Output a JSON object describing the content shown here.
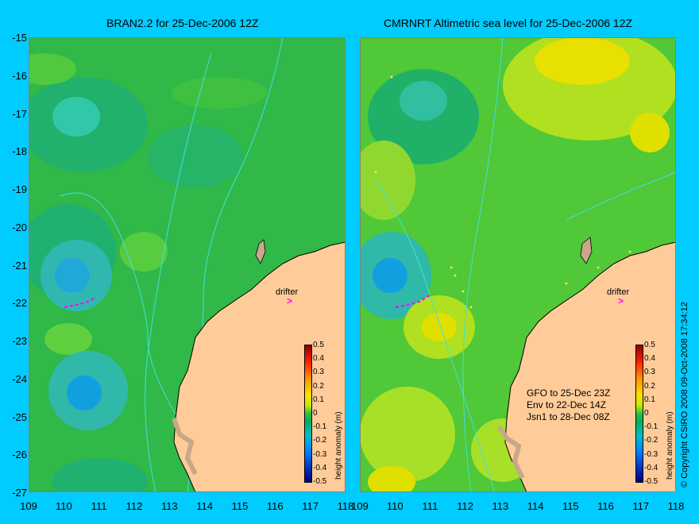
{
  "left_panel": {
    "title": "BRAN2.2 for 25-Dec-2006 12Z"
  },
  "right_panel": {
    "title": "CMRNRT Altimetric sea level  for 25-Dec-2006 12Z"
  },
  "y_axis_labels": [
    "-15",
    "-16",
    "-17",
    "-18",
    "-19",
    "-20",
    "-21",
    "-22",
    "-23",
    "-24",
    "-25",
    "-26",
    "-27"
  ],
  "x_axis_labels": [
    "109",
    "110",
    "111",
    "112",
    "113",
    "114",
    "115",
    "116",
    "117",
    "118"
  ],
  "drifter_label": "drifter",
  "colorbar": {
    "ticks": [
      "0.5",
      "0.4",
      "0.3",
      "0.2",
      "0.1",
      "0",
      "-0.1",
      "-0.2",
      "-0.3",
      "-0.4",
      "-0.5"
    ],
    "title": "height anomaly (m)"
  },
  "satellite_legend": [
    "GFO to 25-Dec 23Z",
    "Env to 22-Dec 14Z",
    "Jsn1 to 28-Dec 08Z"
  ],
  "copyright": "© Copyright CSIRO 2008   09-Oct-2008 17:34:12",
  "colors": {
    "background": "#00ccff",
    "land": "#ffcc99",
    "shelf": "#c8a888",
    "drifter": "#ff00ff"
  }
}
